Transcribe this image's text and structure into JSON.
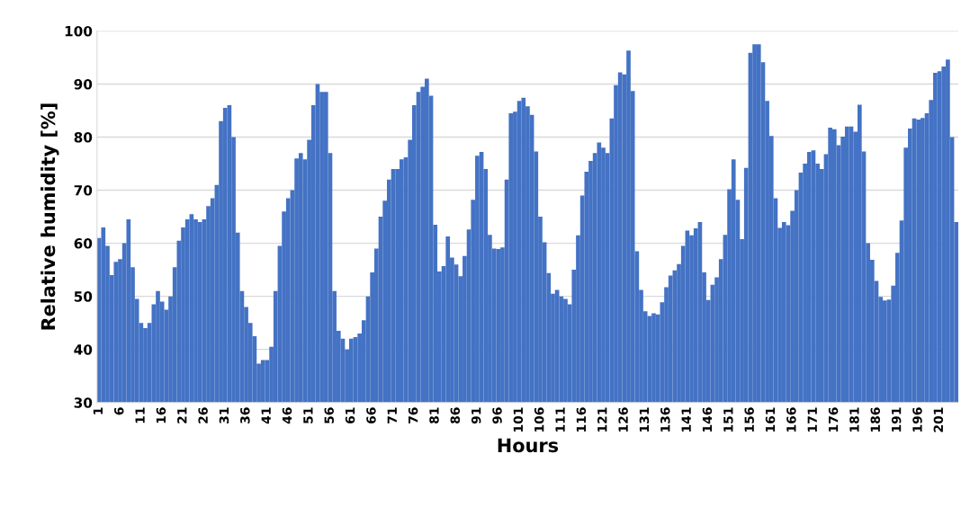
{
  "chart_data": {
    "type": "bar",
    "xlabel": "Hours",
    "ylabel": "Relative humidity [%]",
    "color": "#4472c4",
    "categories": [
      "1",
      null,
      null,
      null,
      null,
      "6",
      null,
      null,
      null,
      null,
      "11",
      null,
      null,
      null,
      null,
      "16",
      null,
      null,
      null,
      null,
      "21",
      null,
      null,
      null,
      null,
      "26",
      null,
      null,
      null,
      null,
      "31",
      null,
      null,
      null,
      null,
      "36",
      null,
      null,
      null,
      null,
      "41",
      null,
      null,
      null,
      null,
      "46",
      null,
      null,
      null,
      null,
      "51",
      null,
      null,
      null,
      null,
      "56",
      null,
      null,
      null,
      null,
      "61",
      null,
      null,
      null,
      null,
      "66",
      null,
      null,
      null,
      null,
      "71",
      null,
      null,
      null,
      null,
      "76",
      null,
      null,
      null,
      null,
      "81",
      null,
      null,
      null,
      null,
      "86",
      null,
      null,
      null,
      null,
      "91",
      null,
      null,
      null,
      null,
      "96",
      null,
      null,
      null,
      null,
      "101",
      null,
      null,
      null,
      null,
      "106",
      null,
      null,
      null,
      null,
      "111",
      null,
      null,
      null,
      null,
      "116",
      null,
      null,
      null,
      null,
      "121",
      null,
      null,
      null,
      null,
      "126",
      null,
      null,
      null,
      null,
      "131",
      null,
      null,
      null,
      null,
      "136",
      null,
      null,
      null,
      null,
      "141",
      null,
      null,
      null,
      null,
      "146",
      null,
      null,
      null,
      null,
      "151",
      null,
      null,
      null,
      null,
      "156",
      null,
      null,
      null,
      null,
      "161",
      null,
      null,
      null,
      null,
      "166",
      null,
      null,
      null,
      null,
      "171",
      null,
      null,
      null,
      null,
      "176",
      null,
      null,
      null,
      null,
      "181",
      null,
      null,
      null,
      null,
      "186",
      null,
      null,
      null,
      null,
      "191",
      null,
      null,
      null,
      null,
      "196",
      null,
      null,
      null,
      null,
      "201",
      null,
      null,
      null,
      null
    ],
    "values": [
      61,
      63,
      59.5,
      54,
      56.5,
      57,
      60,
      64.5,
      55.5,
      49.5,
      45,
      44,
      45,
      48.5,
      51,
      49,
      47.5,
      50,
      55.5,
      60.5,
      63,
      64.5,
      65.5,
      64.5,
      64,
      64.5,
      67,
      68.5,
      71,
      83,
      85.5,
      86,
      80,
      62,
      51,
      48,
      45,
      42.5,
      37.3,
      38,
      38,
      40.5,
      51,
      59.5,
      66,
      68.5,
      70,
      76,
      77,
      75.8,
      79.5,
      86,
      90,
      88.5,
      88.5,
      77,
      51,
      43.5,
      42,
      40,
      42,
      42.3,
      43,
      45.5,
      50,
      54.5,
      59,
      65,
      68,
      72,
      74,
      74,
      75.8,
      76.2,
      79.5,
      86,
      88.5,
      89.5,
      91,
      87.8,
      63.5,
      54.7,
      55.7,
      61.3,
      57.3,
      56,
      53.8,
      57.6,
      62.6,
      68.2,
      76.5,
      77.2,
      74,
      61.6,
      59,
      58.9,
      59.2,
      72,
      84.5,
      84.8,
      86.8,
      87.4,
      85.8,
      84.2,
      77.3,
      65,
      60.2,
      54.4,
      50.5,
      51.2,
      50,
      49.5,
      48.5,
      55,
      61.5,
      69,
      73.5,
      75.5,
      77,
      79,
      78,
      77,
      83.5,
      89.8,
      92.2,
      91.8,
      96.3,
      88.7,
      58.5,
      51.2,
      47.2,
      46.3,
      46.8,
      46.6,
      48.9,
      51.7,
      53.9,
      54.9,
      56.1,
      59.5,
      62.4,
      61.5,
      62.8,
      64,
      54.5,
      49.3,
      52.2,
      53.6,
      57,
      61.6,
      70.2,
      75.8,
      68.2,
      60.8,
      74.2,
      95.9,
      97.5,
      97.5,
      94.1,
      86.8,
      80.2,
      68.5,
      62.9,
      64,
      63.4,
      66.1,
      70,
      73.3,
      75,
      77.2,
      77.5,
      75,
      74,
      76.8,
      81.8,
      81.5,
      78.5,
      80.1,
      82,
      82,
      81,
      86.1,
      77.3,
      60,
      56.9,
      52.9,
      49.9,
      49.2,
      49.4,
      52,
      58.2,
      64.3,
      78,
      81.6,
      83.5,
      83.3,
      83.6,
      84.5,
      87,
      92.1,
      92.4,
      93.3,
      94.6,
      80,
      64
    ],
    "ylim": [
      30,
      100
    ],
    "yticks": [
      30,
      40,
      50,
      60,
      70,
      80,
      90,
      100
    ],
    "grid": "y"
  }
}
